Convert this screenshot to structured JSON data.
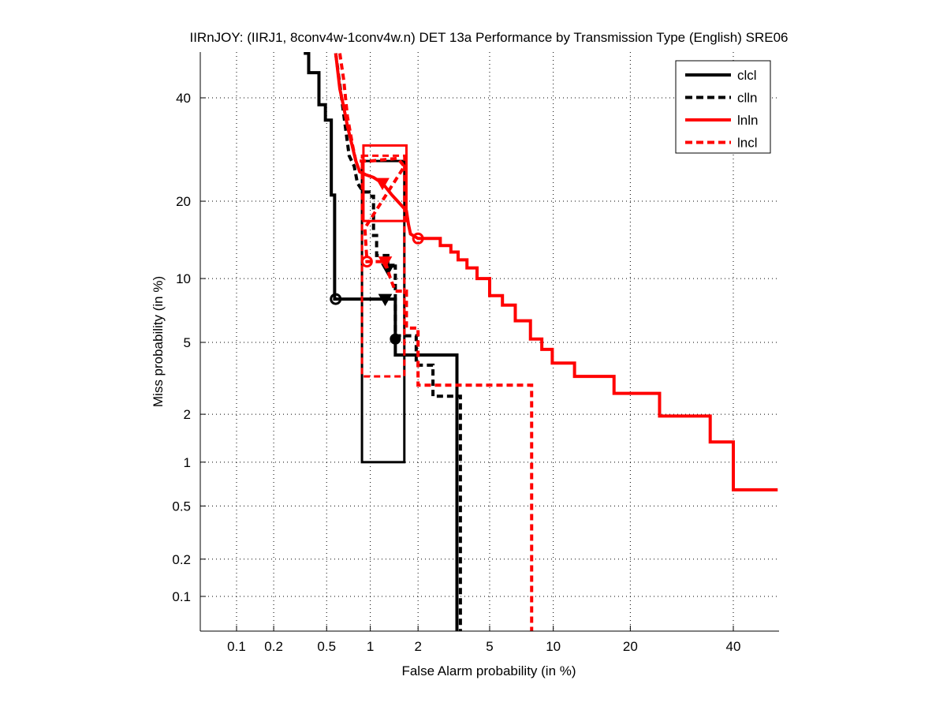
{
  "chart_data": {
    "type": "line",
    "title": "IIRnJOY: (IIRJ1, 8conv4w-1conv4w.n) DET 13a Performance by Transmission Type (English) SRE06",
    "xlabel": "False Alarm probability (in %)",
    "ylabel": "Miss probability (in %)",
    "scale": "probit (normal deviate)",
    "xlim": [
      0.04,
      50
    ],
    "ylim": [
      0.04,
      50
    ],
    "xticks": [
      0.1,
      0.2,
      0.5,
      1,
      2,
      5,
      10,
      20,
      40
    ],
    "xtick_labels": [
      "0.1",
      "0.2",
      "0.5",
      "1",
      "2",
      "5",
      "10",
      "20",
      "40"
    ],
    "yticks": [
      0.1,
      0.2,
      0.5,
      1,
      2,
      5,
      10,
      20,
      40
    ],
    "ytick_labels": [
      "0.1",
      "0.2",
      "0.5",
      "1",
      "2",
      "5",
      "10",
      "20",
      "40"
    ],
    "grid": true,
    "legend_position": "top-right",
    "series": [
      {
        "name": "clcl",
        "color": "#000000",
        "style": "solid",
        "points": [
          [
            0.34,
            50
          ],
          [
            0.37,
            50
          ],
          [
            0.37,
            45.6
          ],
          [
            0.44,
            45.6
          ],
          [
            0.44,
            38.5
          ],
          [
            0.49,
            38.5
          ],
          [
            0.49,
            35.2
          ],
          [
            0.54,
            35.2
          ],
          [
            0.54,
            21
          ],
          [
            0.57,
            21
          ],
          [
            0.57,
            8.1
          ],
          [
            1.45,
            8.1
          ],
          [
            1.45,
            4.3
          ],
          [
            3.35,
            4.3
          ],
          [
            3.35,
            0.04
          ]
        ],
        "min_dcf_point": [
          1.25,
          8.1
        ],
        "actual_dcf_point": [
          0.58,
          8.1
        ],
        "eer_point": [
          1.45,
          5.2
        ],
        "confidence_box": {
          "fa": [
            0.88,
            1.65
          ],
          "miss": [
            1.0,
            27
          ]
        }
      },
      {
        "name": "clln",
        "color": "#000000",
        "style": "dashed",
        "points": [
          [
            0.58,
            50
          ],
          [
            0.72,
            28
          ],
          [
            0.78,
            26
          ],
          [
            0.82,
            23
          ],
          [
            0.9,
            21.5
          ],
          [
            0.98,
            21.5
          ],
          [
            0.98,
            20.8
          ],
          [
            1.05,
            20.8
          ],
          [
            1.05,
            15
          ],
          [
            1.1,
            15
          ],
          [
            1.1,
            12.5
          ],
          [
            1.3,
            12.5
          ],
          [
            1.3,
            11.3
          ],
          [
            1.45,
            11.3
          ],
          [
            1.45,
            5.4
          ],
          [
            1.95,
            5.4
          ],
          [
            1.95,
            3.8
          ],
          [
            2.45,
            3.8
          ],
          [
            2.45,
            2.55
          ],
          [
            3.5,
            2.55
          ],
          [
            3.5,
            0.04
          ]
        ],
        "min_dcf_point": [
          1.3,
          11.0
        ]
      },
      {
        "name": "lnln",
        "color": "#ff0000",
        "style": "solid",
        "points": [
          [
            0.58,
            50
          ],
          [
            0.62,
            42
          ],
          [
            0.66,
            38
          ],
          [
            0.7,
            34
          ],
          [
            0.74,
            31
          ],
          [
            0.8,
            27
          ],
          [
            0.85,
            25
          ],
          [
            0.93,
            24.5
          ],
          [
            1.05,
            24
          ],
          [
            1.2,
            23
          ],
          [
            1.38,
            21
          ],
          [
            1.55,
            19.6
          ],
          [
            1.7,
            18.5
          ],
          [
            1.75,
            16.5
          ],
          [
            1.8,
            15.2
          ],
          [
            2,
            14.6
          ],
          [
            2.7,
            14.6
          ],
          [
            2.7,
            13.7
          ],
          [
            3.1,
            13.7
          ],
          [
            3.1,
            12.9
          ],
          [
            3.4,
            12.9
          ],
          [
            3.4,
            12
          ],
          [
            3.8,
            12
          ],
          [
            3.8,
            11.1
          ],
          [
            4.3,
            11.1
          ],
          [
            4.3,
            10
          ],
          [
            5,
            10
          ],
          [
            5,
            8.4
          ],
          [
            5.8,
            8.4
          ],
          [
            5.8,
            7.6
          ],
          [
            6.7,
            7.6
          ],
          [
            6.7,
            6.4
          ],
          [
            7.9,
            6.4
          ],
          [
            7.9,
            5.2
          ],
          [
            8.9,
            5.2
          ],
          [
            8.9,
            4.6
          ],
          [
            9.9,
            4.6
          ],
          [
            9.9,
            3.9
          ],
          [
            12.3,
            3.9
          ],
          [
            12.3,
            3.3
          ],
          [
            17.5,
            3.3
          ],
          [
            17.5,
            2.65
          ],
          [
            25,
            2.65
          ],
          [
            25,
            1.95
          ],
          [
            35,
            1.95
          ],
          [
            35,
            1.35
          ],
          [
            40,
            1.35
          ],
          [
            40,
            0.65
          ],
          [
            50,
            0.65
          ]
        ],
        "min_dcf_point": [
          1.2,
          23
        ],
        "actual_dcf_point": [
          2.0,
          14.6
        ],
        "confidence_box": {
          "fa": [
            0.9,
            1.7
          ],
          "miss": [
            17,
            30
          ]
        }
      },
      {
        "name": "lncl",
        "color": "#ff0000",
        "style": "dashed",
        "points": [
          [
            0.62,
            50
          ],
          [
            0.66,
            44
          ],
          [
            0.7,
            36
          ],
          [
            0.76,
            30
          ],
          [
            0.8,
            27
          ],
          [
            0.9,
            27
          ],
          [
            1.0,
            27
          ],
          [
            1.5,
            27.5
          ],
          [
            1.65,
            26
          ],
          [
            0.92,
            16
          ],
          [
            0.95,
            11.8
          ],
          [
            1.25,
            11.8
          ],
          [
            1.35,
            10
          ],
          [
            1.45,
            8.8
          ],
          [
            1.7,
            8.8
          ],
          [
            1.7,
            5.9
          ],
          [
            2.0,
            5.9
          ],
          [
            2.0,
            2.95
          ],
          [
            8.0,
            2.95
          ],
          [
            8.0,
            0.04
          ]
        ],
        "min_dcf_point": [
          1.25,
          11.8
        ],
        "actual_dcf_point": [
          0.95,
          11.8
        ],
        "confidence_box": {
          "fa": [
            0.88,
            1.65
          ],
          "miss": [
            3.3,
            28
          ]
        }
      }
    ],
    "legend": [
      {
        "label": "clcl",
        "color": "#000000",
        "style": "solid"
      },
      {
        "label": "clln",
        "color": "#000000",
        "style": "dashed"
      },
      {
        "label": "lnln",
        "color": "#ff0000",
        "style": "solid"
      },
      {
        "label": "lncl",
        "color": "#ff0000",
        "style": "dashed"
      }
    ]
  }
}
